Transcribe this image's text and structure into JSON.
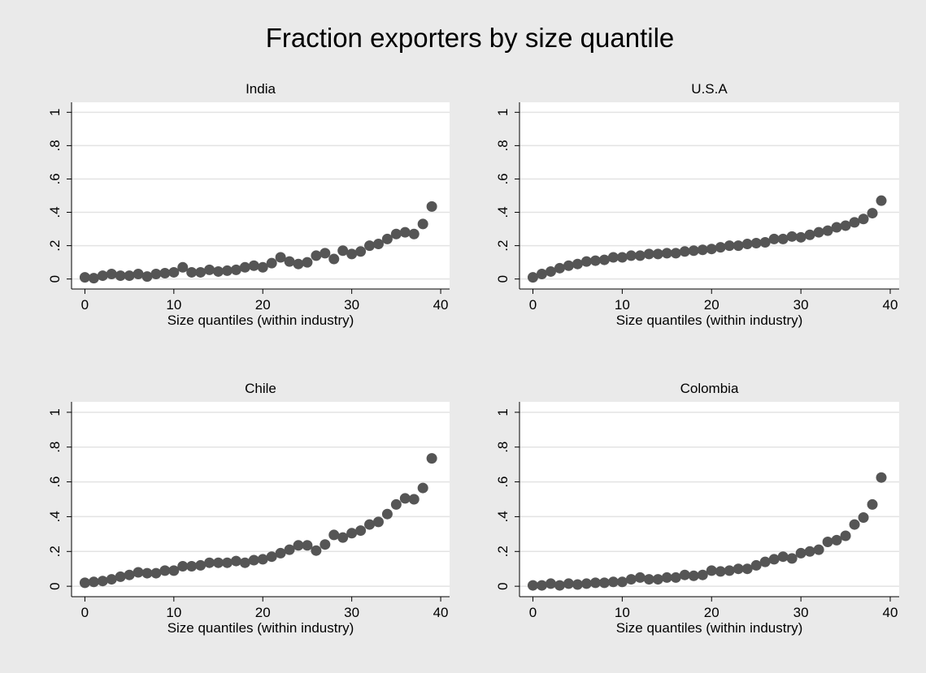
{
  "figure": {
    "title": "Fraction exporters by size quantile",
    "colors": {
      "outer_background": "#eaeaea",
      "plot_background": "#ffffff",
      "marker": "#555555",
      "grid": "#e3e3e3"
    }
  },
  "chart_data": [
    {
      "type": "scatter",
      "title": "India",
      "xlabel": "Size quantiles (within industry)",
      "ylabel": "",
      "xlim": [
        -1.5,
        41
      ],
      "ylim": [
        -0.06,
        1.06
      ],
      "xticks": [
        0,
        10,
        20,
        30,
        40
      ],
      "xtick_labels": [
        "0",
        "10",
        "20",
        "30",
        "40"
      ],
      "yticks": [
        0,
        0.2,
        0.4,
        0.6,
        0.8,
        1
      ],
      "ytick_labels": [
        "0",
        ".2",
        ".4",
        ".6",
        ".8",
        "1"
      ],
      "grid": true,
      "x": [
        0,
        1,
        2,
        3,
        4,
        5,
        6,
        7,
        8,
        9,
        10,
        11,
        12,
        13,
        14,
        15,
        16,
        17,
        18,
        19,
        20,
        21,
        22,
        23,
        24,
        25,
        26,
        27,
        28,
        29,
        30,
        31,
        32,
        33,
        34,
        35,
        36,
        37,
        38,
        39
      ],
      "y": [
        0.01,
        0.005,
        0.02,
        0.03,
        0.02,
        0.02,
        0.03,
        0.015,
        0.03,
        0.035,
        0.04,
        0.07,
        0.04,
        0.04,
        0.055,
        0.045,
        0.05,
        0.055,
        0.07,
        0.08,
        0.07,
        0.095,
        0.13,
        0.105,
        0.09,
        0.1,
        0.14,
        0.155,
        0.12,
        0.17,
        0.15,
        0.165,
        0.2,
        0.21,
        0.24,
        0.27,
        0.28,
        0.27,
        0.33,
        0.435
      ]
    },
    {
      "type": "scatter",
      "title": "U.S.A",
      "xlabel": "Size quantiles (within industry)",
      "ylabel": "",
      "xlim": [
        -1.5,
        41
      ],
      "ylim": [
        -0.06,
        1.06
      ],
      "xticks": [
        0,
        10,
        20,
        30,
        40
      ],
      "xtick_labels": [
        "0",
        "10",
        "20",
        "30",
        "40"
      ],
      "yticks": [
        0,
        0.2,
        0.4,
        0.6,
        0.8,
        1
      ],
      "ytick_labels": [
        "0",
        ".2",
        ".4",
        ".6",
        ".8",
        "1"
      ],
      "grid": true,
      "x": [
        0,
        1,
        2,
        3,
        4,
        5,
        6,
        7,
        8,
        9,
        10,
        11,
        12,
        13,
        14,
        15,
        16,
        17,
        18,
        19,
        20,
        21,
        22,
        23,
        24,
        25,
        26,
        27,
        28,
        29,
        30,
        31,
        32,
        33,
        34,
        35,
        36,
        37,
        38,
        39
      ],
      "y": [
        0.01,
        0.03,
        0.045,
        0.065,
        0.08,
        0.09,
        0.105,
        0.11,
        0.115,
        0.13,
        0.13,
        0.14,
        0.14,
        0.15,
        0.15,
        0.155,
        0.155,
        0.165,
        0.17,
        0.175,
        0.18,
        0.19,
        0.2,
        0.2,
        0.21,
        0.215,
        0.22,
        0.24,
        0.24,
        0.255,
        0.25,
        0.265,
        0.28,
        0.29,
        0.31,
        0.32,
        0.34,
        0.36,
        0.395,
        0.47
      ]
    },
    {
      "type": "scatter",
      "title": "Chile",
      "xlabel": "Size quantiles (within industry)",
      "ylabel": "",
      "xlim": [
        -1.5,
        41
      ],
      "ylim": [
        -0.06,
        1.06
      ],
      "xticks": [
        0,
        10,
        20,
        30,
        40
      ],
      "xtick_labels": [
        "0",
        "10",
        "20",
        "30",
        "40"
      ],
      "yticks": [
        0,
        0.2,
        0.4,
        0.6,
        0.8,
        1
      ],
      "ytick_labels": [
        "0",
        ".2",
        ".4",
        ".6",
        ".8",
        "1"
      ],
      "grid": true,
      "x": [
        0,
        1,
        2,
        3,
        4,
        5,
        6,
        7,
        8,
        9,
        10,
        11,
        12,
        13,
        14,
        15,
        16,
        17,
        18,
        19,
        20,
        21,
        22,
        23,
        24,
        25,
        26,
        27,
        28,
        29,
        30,
        31,
        32,
        33,
        34,
        35,
        36,
        37,
        38,
        39
      ],
      "y": [
        0.02,
        0.025,
        0.03,
        0.04,
        0.055,
        0.065,
        0.08,
        0.075,
        0.075,
        0.09,
        0.09,
        0.115,
        0.115,
        0.12,
        0.135,
        0.135,
        0.135,
        0.145,
        0.135,
        0.15,
        0.155,
        0.17,
        0.19,
        0.21,
        0.235,
        0.235,
        0.205,
        0.24,
        0.295,
        0.28,
        0.305,
        0.32,
        0.355,
        0.37,
        0.415,
        0.47,
        0.505,
        0.5,
        0.565,
        0.735
      ]
    },
    {
      "type": "scatter",
      "title": "Colombia",
      "xlabel": "Size quantiles (within industry)",
      "ylabel": "",
      "xlim": [
        -1.5,
        41
      ],
      "ylim": [
        -0.06,
        1.06
      ],
      "xticks": [
        0,
        10,
        20,
        30,
        40
      ],
      "xtick_labels": [
        "0",
        "10",
        "20",
        "30",
        "40"
      ],
      "yticks": [
        0,
        0.2,
        0.4,
        0.6,
        0.8,
        1
      ],
      "ytick_labels": [
        "0",
        ".2",
        ".4",
        ".6",
        ".8",
        "1"
      ],
      "grid": true,
      "x": [
        0,
        1,
        2,
        3,
        4,
        5,
        6,
        7,
        8,
        9,
        10,
        11,
        12,
        13,
        14,
        15,
        16,
        17,
        18,
        19,
        20,
        21,
        22,
        23,
        24,
        25,
        26,
        27,
        28,
        29,
        30,
        31,
        32,
        33,
        34,
        35,
        36,
        37,
        38,
        39
      ],
      "y": [
        0.005,
        0.005,
        0.015,
        0.005,
        0.015,
        0.01,
        0.015,
        0.02,
        0.02,
        0.025,
        0.025,
        0.04,
        0.05,
        0.04,
        0.04,
        0.05,
        0.05,
        0.065,
        0.06,
        0.065,
        0.09,
        0.085,
        0.09,
        0.1,
        0.1,
        0.12,
        0.14,
        0.155,
        0.17,
        0.16,
        0.19,
        0.2,
        0.21,
        0.255,
        0.265,
        0.29,
        0.355,
        0.395,
        0.47,
        0.625
      ]
    }
  ]
}
